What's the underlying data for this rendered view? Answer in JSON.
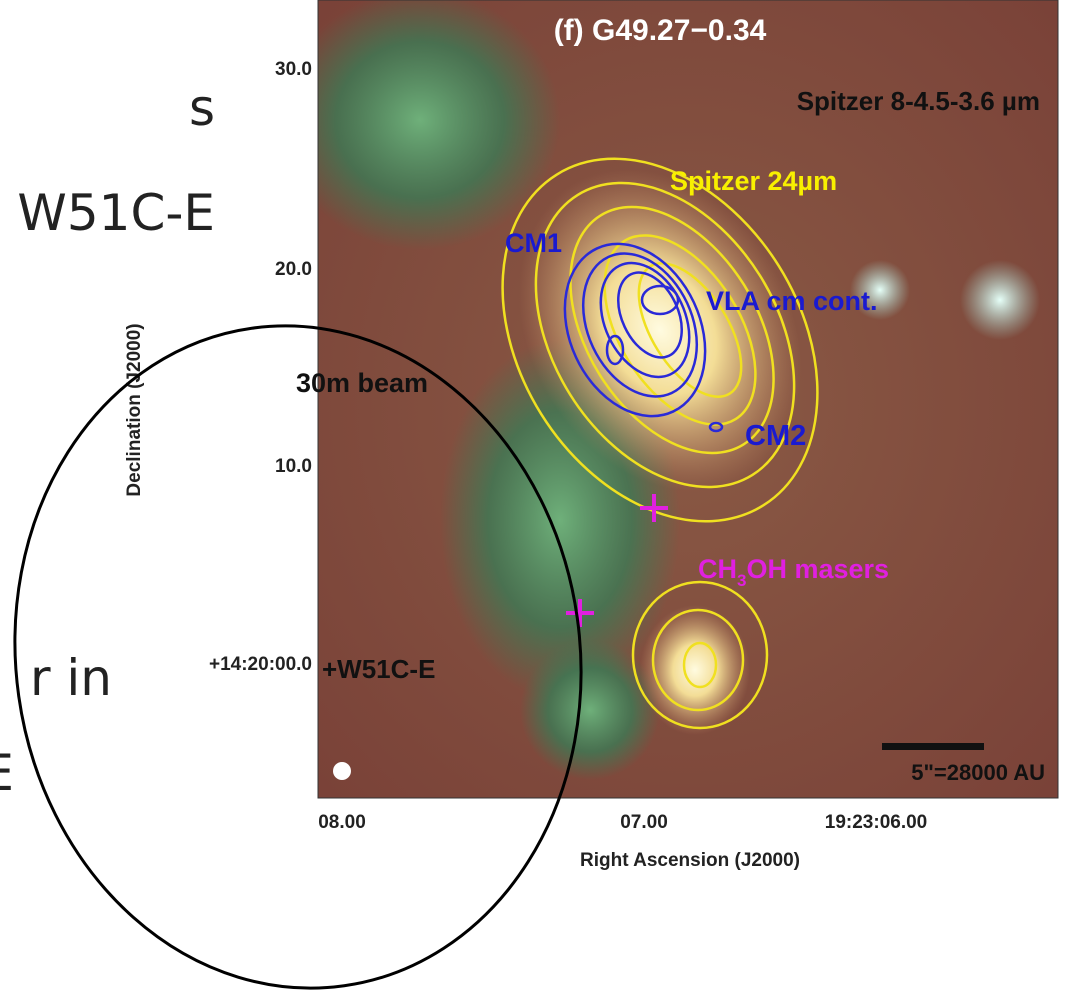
{
  "slide_text": [
    "s",
    "W51C-E",
    "r in",
    "E"
  ],
  "figure": {
    "title": "(f) G49.27−0.34",
    "band_label": "Spitzer 8-4.5-3.6 µm",
    "contour_24_label": "Spitzer 24µm",
    "cm1_label": "CM1",
    "vla_label": "VLA cm cont.",
    "cm2_label": "CM2",
    "maser_label": [
      "CH",
      "3",
      "OH masers"
    ],
    "beam_label": "30m beam",
    "source_label": "+W51C-E",
    "scale_label": "5\"=28000 AU",
    "y_axis_label": "Declination (J2000)",
    "y_ticks": [
      "30.0",
      "20.0",
      "10.0",
      "+14:20:00.0"
    ],
    "x_axis_label": "Right Ascension (J2000)",
    "x_ticks": [
      "08.00",
      "07.00",
      "19:23:06.00"
    ]
  }
}
